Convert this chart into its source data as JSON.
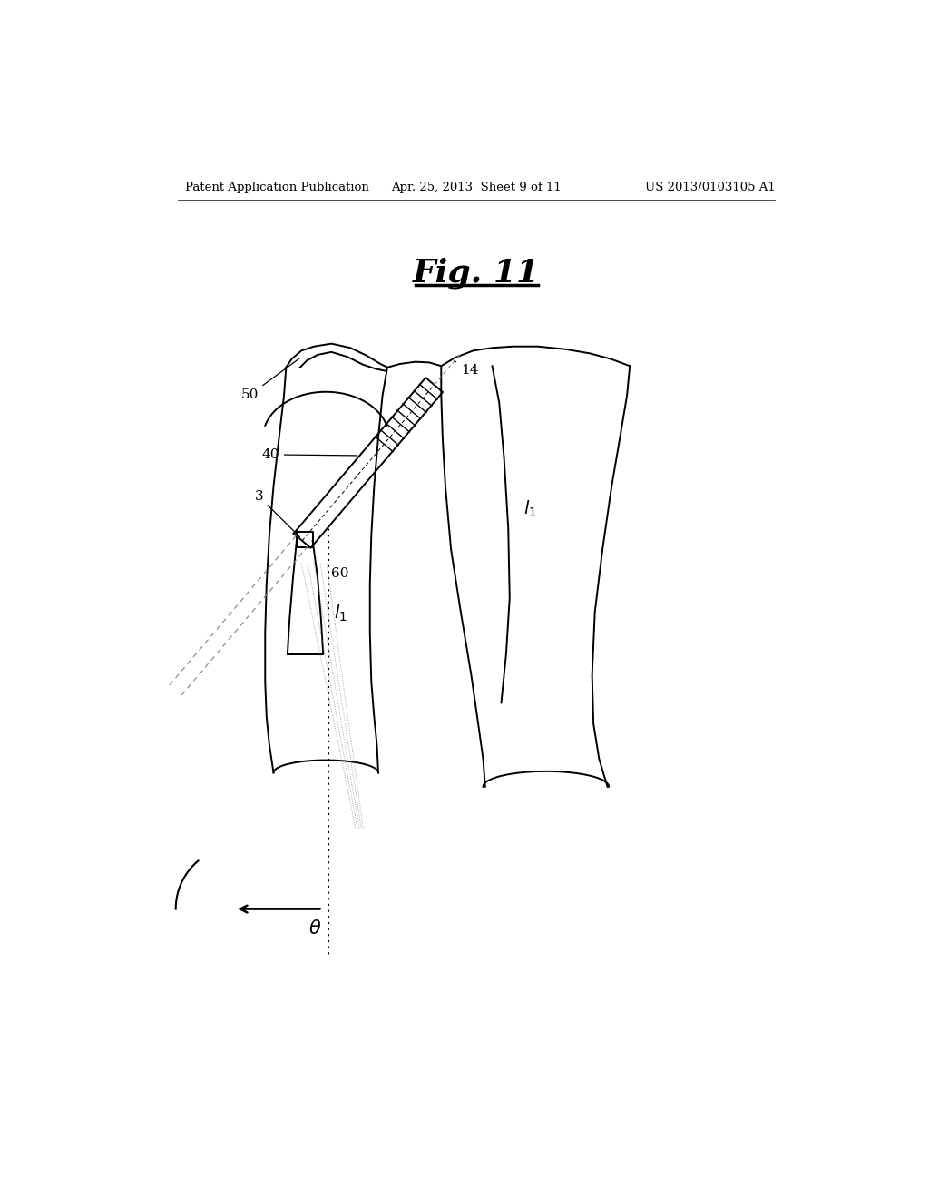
{
  "bg_color": "#ffffff",
  "header_left": "Patent Application Publication",
  "header_center": "Apr. 25, 2013  Sheet 9 of 11",
  "header_right": "US 2013/0103105 A1",
  "fig_title": "Fig. 11",
  "line_color": "#000000",
  "gray_color": "#888888",
  "lw_main": 1.4,
  "lw_thin": 0.8,
  "lw_dashed": 0.9
}
